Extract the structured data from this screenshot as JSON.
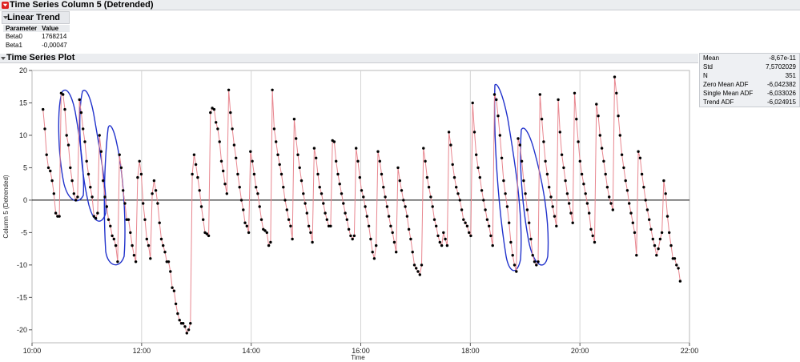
{
  "report": {
    "title": "Time Series Column 5 (Detrended)",
    "linear_trend": {
      "heading": "Linear Trend",
      "columns": [
        "Parameter",
        "Value"
      ],
      "rows": [
        {
          "param": "Beta0",
          "value": "1768214"
        },
        {
          "param": "Beta1",
          "value": "-0,00047"
        }
      ]
    },
    "plot_heading": "Time Series Plot",
    "stats": [
      {
        "label": "Mean",
        "value": "-8,67e-11"
      },
      {
        "label": "Std",
        "value": "7,5702029"
      },
      {
        "label": "N",
        "value": "351"
      },
      {
        "label": "Zero Mean ADF",
        "value": "-6,042382"
      },
      {
        "label": "Single Mean ADF",
        "value": "-6,033026"
      },
      {
        "label": "Trend ADF",
        "value": "-6,024915"
      }
    ]
  },
  "colors": {
    "line": "#e8868f",
    "point": "#000000",
    "annotation": "#2233cc",
    "zero_line": "#000000",
    "grid": "#d4d4d4"
  },
  "chart_data": {
    "type": "line",
    "xlabel": "Time",
    "ylabel": "Column 5 (Detrended)",
    "xlim_hours": [
      10.0,
      22.0
    ],
    "ylim": [
      -22,
      20
    ],
    "x_ticks": [
      "10:00",
      "12:00",
      "14:00",
      "16:00",
      "18:00",
      "20:00",
      "22:00"
    ],
    "y_ticks": [
      -20,
      -15,
      -10,
      -5,
      0,
      5,
      10,
      15,
      20
    ],
    "grid_vertical": true,
    "reference_line_y": 0,
    "series": [
      {
        "x_start_hour": 10.2,
        "x_end_hour": 21.83,
        "values": [
          14.0,
          11.0,
          7.0,
          5.0,
          4.5,
          3.0,
          1.0,
          -2.0,
          -2.5,
          -2.5,
          16.5,
          16.3,
          14.0,
          10.0,
          8.5,
          5.0,
          3.0,
          1.0,
          0.0,
          0.5,
          15.5,
          13.5,
          11.0,
          9.0,
          6.0,
          4.0,
          2.0,
          0.5,
          -2.5,
          -2.8,
          -2.0,
          10.0,
          7.5,
          3.0,
          0.5,
          -1.0,
          -3.0,
          -4.0,
          -5.5,
          -6.0,
          -7.0,
          -9.5,
          7.0,
          5.0,
          1.5,
          -0.5,
          -3.0,
          -3.0,
          -5.0,
          -7.0,
          -8.5,
          -9.5,
          3.5,
          6.0,
          4.0,
          -0.5,
          -3.0,
          -6.0,
          -7.0,
          -9.0,
          1.0,
          3.0,
          1.5,
          -0.5,
          -3.5,
          -6.0,
          -7.0,
          -8.0,
          -9.5,
          -9.5,
          -11.0,
          -13.5,
          -14.0,
          -16.0,
          -17.5,
          -18.5,
          -19.0,
          -19.0,
          -19.5,
          -20.5,
          -20.0,
          -19.0,
          4.0,
          7.0,
          5.5,
          3.5,
          1.5,
          -1.0,
          -3.0,
          -5.0,
          -5.2,
          -5.5,
          13.5,
          14.2,
          14.0,
          12.0,
          11.0,
          9.0,
          6.0,
          4.5,
          2.5,
          1.0,
          17.0,
          13.5,
          11.0,
          8.5,
          6.5,
          4.0,
          2.0,
          0.0,
          -1.5,
          -3.5,
          -4.0,
          -5.0,
          7.5,
          6.0,
          4.0,
          2.0,
          1.0,
          -1.0,
          -3.0,
          -4.5,
          -4.7,
          -5.0,
          -7.0,
          -6.5,
          17.0,
          11.0,
          9.0,
          7.0,
          5.5,
          4.0,
          2.0,
          0.0,
          -1.5,
          -3.0,
          -4.0,
          -6.0,
          12.5,
          9.5,
          7.0,
          5.0,
          3.0,
          1.0,
          -0.5,
          -2.0,
          -4.0,
          -5.0,
          -6.5,
          8.0,
          6.5,
          4.0,
          2.0,
          1.0,
          -0.5,
          -2.0,
          -3.0,
          -4.0,
          -4.0,
          9.2,
          9.0,
          6.0,
          4.0,
          2.5,
          1.0,
          -0.5,
          -2.0,
          -3.0,
          -4.5,
          -5.5,
          -6.0,
          -5.5,
          8.0,
          6.0,
          3.5,
          1.5,
          0.5,
          -1.0,
          -2.5,
          -4.0,
          -6.0,
          -8.0,
          -9.0,
          -7.0,
          7.5,
          6.0,
          4.0,
          2.0,
          0.5,
          -1.0,
          -2.5,
          -4.0,
          -5.0,
          -6.5,
          -8.0,
          5.0,
          3.0,
          1.5,
          0.0,
          -1.0,
          -2.5,
          -4.5,
          -6.0,
          -8.0,
          -10.0,
          -10.5,
          -11.0,
          -11.5,
          -10.0,
          8.0,
          6.0,
          3.5,
          2.0,
          0.5,
          -1.0,
          -3.0,
          -4.0,
          -5.5,
          -6.5,
          -7.0,
          -5.0,
          -6.0,
          -7.0,
          10.5,
          8.5,
          5.5,
          3.5,
          2.0,
          1.0,
          0.0,
          -1.5,
          -3.0,
          -3.5,
          -4.0,
          -5.0,
          -5.5,
          15.0,
          10.5,
          7.0,
          5.0,
          3.5,
          1.5,
          0.0,
          -1.5,
          -3.0,
          -4.0,
          -5.5,
          -7.0,
          16.3,
          15.5,
          13.0,
          10.0,
          6.5,
          3.0,
          1.0,
          -1.0,
          -3.5,
          -6.5,
          -8.5,
          -10.0,
          -11.0,
          9.5,
          8.5,
          6.0,
          3.0,
          1.0,
          -1.5,
          -3.5,
          -6.0,
          -8.5,
          -9.5,
          -10.0,
          -9.5,
          16.3,
          12.5,
          9.0,
          6.0,
          4.0,
          2.0,
          0.5,
          -1.0,
          -2.5,
          -4.0,
          15.5,
          10.5,
          7.0,
          5.0,
          3.0,
          1.0,
          -0.5,
          -2.0,
          -3.5,
          16.5,
          12.5,
          9.0,
          6.0,
          4.0,
          2.5,
          1.0,
          -0.5,
          -2.0,
          -4.5,
          -5.5,
          -6.5,
          14.8,
          13.0,
          10.0,
          8.0,
          6.0,
          4.0,
          2.0,
          0.5,
          -0.5,
          -1.5,
          19.0,
          16.5,
          13.0,
          10.0,
          7.0,
          5.0,
          3.0,
          1.5,
          -0.5,
          -2.0,
          -3.5,
          -5.0,
          -8.5,
          7.5,
          6.5,
          4.0,
          2.0,
          0.0,
          -1.5,
          -3.0,
          -4.5,
          -6.0,
          -7.0,
          -8.5,
          -7.5,
          -6.0,
          -5.0,
          3.0,
          1.0,
          -2.5,
          -5.0,
          -7.0,
          -9.0,
          -9.0,
          -10.0,
          -10.5,
          -12.5
        ]
      }
    ]
  }
}
